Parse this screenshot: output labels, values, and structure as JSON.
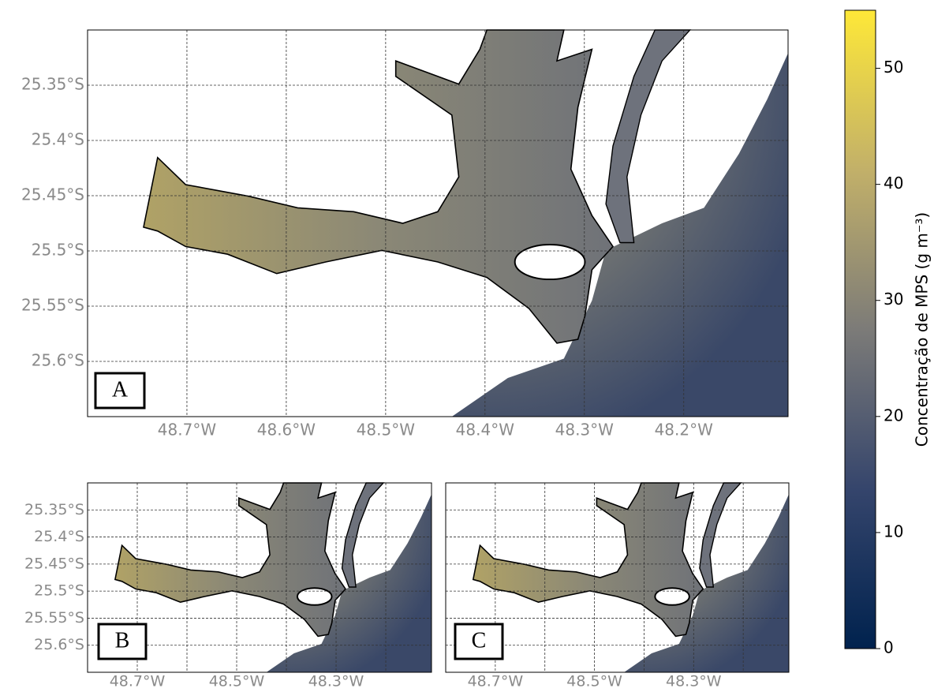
{
  "panels": [
    {
      "label": "A",
      "latlim": [
        -25.65,
        -25.3
      ],
      "lonlim": [
        -48.8,
        -48.095
      ],
      "lat_ticks": [
        {
          "value": -25.35,
          "label": "25.35°S"
        },
        {
          "value": -25.4,
          "label": "25.4°S"
        },
        {
          "value": -25.45,
          "label": "25.45°S"
        },
        {
          "value": -25.5,
          "label": "25.5°S"
        },
        {
          "value": -25.55,
          "label": "25.55°S"
        },
        {
          "value": -25.6,
          "label": "25.6°S"
        }
      ],
      "lon_ticks": [
        {
          "value": -48.7,
          "label": "48.7°W"
        },
        {
          "value": -48.6,
          "label": "48.6°W"
        },
        {
          "value": -48.5,
          "label": "48.5°W"
        },
        {
          "value": -48.4,
          "label": "48.4°W"
        },
        {
          "value": -48.3,
          "label": "48.3°W"
        },
        {
          "value": -48.2,
          "label": "48.2°W"
        }
      ]
    },
    {
      "label": "B",
      "latlim": [
        -25.65,
        -25.3
      ],
      "lonlim": [
        -48.8,
        -48.108
      ],
      "lat_ticks": [
        {
          "value": -25.35,
          "label": "25.35°S"
        },
        {
          "value": -25.4,
          "label": "25.4°S"
        },
        {
          "value": -25.45,
          "label": "25.45°S"
        },
        {
          "value": -25.5,
          "label": "25.5°S"
        },
        {
          "value": -25.55,
          "label": "25.55°S"
        },
        {
          "value": -25.6,
          "label": "25.6°S"
        }
      ],
      "lon_ticks": [
        {
          "value": -48.7,
          "label": "48.7°W"
        },
        {
          "value": -48.5,
          "label": "48.5°W"
        },
        {
          "value": -48.3,
          "label": "48.3°W"
        }
      ],
      "lon_grid": [
        -48.6,
        -48.4,
        -48.2
      ]
    },
    {
      "label": "C",
      "latlim": [
        -25.65,
        -25.3
      ],
      "lonlim": [
        -48.8,
        -48.108
      ],
      "lat_grid": [
        -25.35,
        -25.4,
        -25.45,
        -25.5,
        -25.55,
        -25.6
      ],
      "lon_ticks": [
        {
          "value": -48.7,
          "label": "48.7°W"
        },
        {
          "value": -48.5,
          "label": "48.5°W"
        },
        {
          "value": -48.3,
          "label": "48.3°W"
        }
      ],
      "lon_grid": [
        -48.6,
        -48.4,
        -48.2
      ]
    }
  ],
  "colorbar": {
    "label": "Concentração de MPS (g m⁻³)",
    "lim": [
      0,
      55
    ],
    "ticks": [
      0,
      10,
      20,
      30,
      40,
      50
    ]
  }
}
